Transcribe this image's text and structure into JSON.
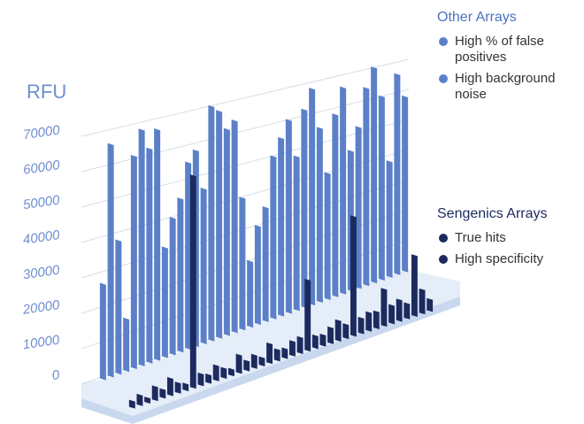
{
  "chart_data": {
    "type": "bar3d",
    "y_label": "RFU",
    "ylim": [
      0,
      70000
    ],
    "yticks": [
      0,
      10000,
      20000,
      30000,
      40000,
      50000,
      60000,
      70000
    ],
    "grid": true,
    "series": [
      {
        "name": "Other Arrays",
        "color": "#5b80c8",
        "descriptions": [
          "High % of false positives",
          "High background noise"
        ],
        "values": [
          27000,
          66000,
          38000,
          15000,
          61000,
          68000,
          62000,
          67000,
          32000,
          40000,
          45000,
          55000,
          58000,
          46000,
          70000,
          68000,
          62000,
          64000,
          40000,
          20000,
          30000,
          35000,
          50000,
          55000,
          60000,
          48000,
          62000,
          68000,
          55000,
          40000,
          58000,
          66000,
          45000,
          52000,
          64000,
          70000,
          60000,
          38000,
          66000,
          58000
        ]
      },
      {
        "name": "Sengenics Arrays",
        "color": "#1c2a5e",
        "descriptions": [
          "True hits",
          "High specificity"
        ],
        "values": [
          2000,
          3000,
          1500,
          4000,
          2500,
          5000,
          3000,
          2000,
          62000,
          3500,
          2500,
          4500,
          3000,
          2000,
          5500,
          3000,
          4000,
          2500,
          6000,
          3500,
          3000,
          4500,
          5000,
          22000,
          4000,
          3500,
          5000,
          6500,
          4500,
          38000,
          5000,
          6000,
          5500,
          12000,
          6000,
          7000,
          5000,
          20000,
          8000,
          4000
        ]
      }
    ]
  }
}
